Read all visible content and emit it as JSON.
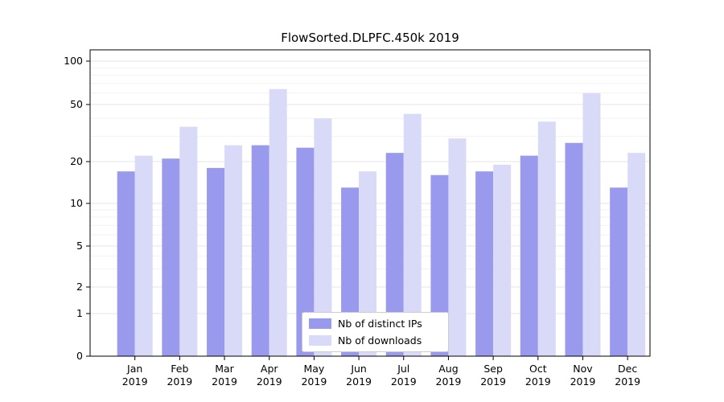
{
  "chart_data": {
    "type": "bar",
    "title": "FlowSorted.DLPFC.450k 2019",
    "categories": [
      "Jan",
      "Feb",
      "Mar",
      "Apr",
      "May",
      "Jun",
      "Jul",
      "Aug",
      "Sep",
      "Oct",
      "Nov",
      "Dec"
    ],
    "year_label": "2019",
    "series": [
      {
        "name": "Nb of distinct IPs",
        "values": [
          17,
          21,
          18,
          26,
          25,
          13,
          23,
          16,
          17,
          22,
          27,
          13
        ]
      },
      {
        "name": "Nb of downloads",
        "values": [
          22,
          35,
          26,
          64,
          40,
          17,
          43,
          29,
          19,
          38,
          60,
          23
        ]
      }
    ],
    "y_ticks": [
      0,
      1,
      2,
      5,
      10,
      20,
      50,
      100
    ],
    "yscale": "log-like",
    "ylim": [
      0,
      110
    ],
    "grid": "horizontal",
    "legend_position": "bottom-center",
    "colors": {
      "ips": "#9999ee",
      "downloads": "#d9d9f8",
      "grid_major": "#e5e5e5",
      "grid_minor": "#f2f2f2",
      "axis": "#000000",
      "text": "#000000"
    }
  }
}
